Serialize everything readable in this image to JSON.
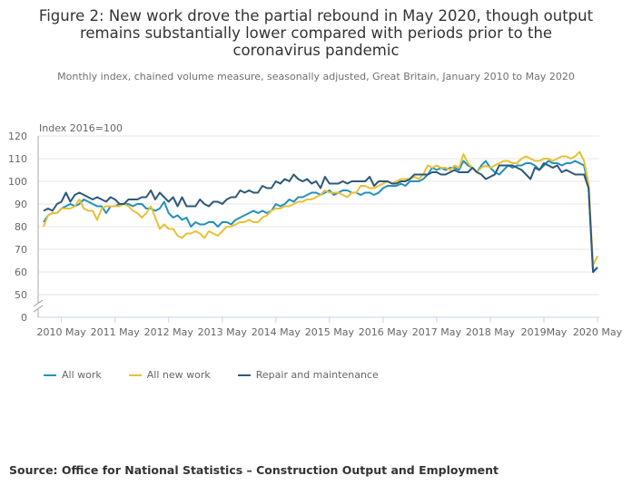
{
  "chart_data": {
    "type": "line",
    "title": "Figure 2: New work drove the partial rebound in May 2020, though output remains substantially lower compared with periods prior to the coronavirus pandemic",
    "subtitle": "Monthly index, chained volume measure, seasonally adjusted, Great Britain, January 2010 to May 2020",
    "ylabel": "Index 2016=100",
    "xlabel": "",
    "ylim": [
      0,
      120
    ],
    "yticks": [
      "120",
      "110",
      "100",
      "90",
      "80",
      "70",
      "60",
      "50",
      "0"
    ],
    "xticks": [
      "2010 May",
      "2011 May",
      "2012 May",
      "2013 May",
      "2014 May",
      "2015 May",
      "2016 May",
      "2017 May",
      "2018 May",
      "2019May",
      "2020 May"
    ],
    "x_start": "January 2010",
    "x_end": "May 2020",
    "frequency": "monthly",
    "series": [
      {
        "name": "All work",
        "color": "#2391bd",
        "values": [
          82,
          85,
          86,
          86,
          88,
          89,
          90,
          89,
          90,
          92,
          91,
          90,
          89,
          89,
          86,
          89,
          89,
          90,
          90,
          90,
          89,
          90,
          90,
          88,
          88,
          87,
          88,
          91,
          86,
          84,
          85,
          83,
          84,
          80,
          82,
          81,
          81,
          82,
          82,
          80,
          82,
          82,
          81,
          83,
          84,
          85,
          86,
          87,
          86,
          87,
          86,
          87,
          90,
          89,
          90,
          92,
          91,
          93,
          93,
          94,
          95,
          95,
          94,
          95,
          96,
          94,
          95,
          96,
          96,
          95,
          95,
          94,
          95,
          95,
          94,
          95,
          97,
          98,
          98,
          98,
          99,
          98,
          100,
          100,
          100,
          101,
          103,
          106,
          105,
          106,
          105,
          106,
          106,
          105,
          109,
          107,
          106,
          104,
          107,
          109,
          106,
          104,
          103,
          105,
          107,
          106,
          107,
          107,
          108,
          108,
          107,
          105,
          107,
          109,
          108,
          108,
          107,
          108,
          108,
          109,
          108,
          107,
          97,
          60,
          62
        ]
      },
      {
        "name": "All new work",
        "color": "#e8c135",
        "values": [
          80,
          85,
          86,
          86,
          88,
          88,
          88,
          89,
          92,
          88,
          87,
          87,
          83,
          88,
          89,
          89,
          89,
          89,
          90,
          89,
          87,
          86,
          84,
          86,
          89,
          84,
          79,
          81,
          79,
          79,
          76,
          75,
          77,
          77,
          78,
          77,
          75,
          78,
          77,
          76,
          78,
          80,
          80,
          81,
          82,
          82,
          83,
          82,
          82,
          84,
          85,
          87,
          88,
          88,
          89,
          89,
          90,
          91,
          91,
          92,
          92,
          93,
          94,
          96,
          95,
          95,
          95,
          94,
          93,
          95,
          95,
          98,
          98,
          97,
          97,
          98,
          99,
          100,
          99,
          100,
          101,
          101,
          101,
          102,
          101,
          103,
          107,
          106,
          107,
          106,
          106,
          105,
          107,
          106,
          112,
          108,
          106,
          104,
          106,
          107,
          106,
          107,
          108,
          109,
          109,
          108,
          108,
          110,
          111,
          110,
          109,
          109,
          110,
          110,
          109,
          110,
          111,
          111,
          110,
          111,
          113,
          109,
          99,
          63,
          67
        ]
      },
      {
        "name": "Repair and maintenance",
        "color": "#2f5878",
        "values": [
          87,
          88,
          87,
          90,
          91,
          95,
          91,
          94,
          95,
          94,
          93,
          92,
          93,
          92,
          91,
          93,
          92,
          90,
          90,
          92,
          92,
          92,
          93,
          93,
          96,
          92,
          95,
          93,
          91,
          93,
          89,
          93,
          89,
          89,
          89,
          92,
          90,
          89,
          91,
          91,
          90,
          92,
          93,
          93,
          96,
          95,
          96,
          95,
          95,
          98,
          97,
          97,
          100,
          99,
          101,
          100,
          103,
          101,
          100,
          101,
          99,
          100,
          97,
          102,
          99,
          99,
          99,
          100,
          99,
          100,
          100,
          100,
          100,
          102,
          98,
          100,
          100,
          100,
          99,
          99,
          100,
          100,
          101,
          103,
          103,
          103,
          103,
          104,
          104,
          103,
          103,
          104,
          105,
          104,
          104,
          104,
          106,
          104,
          103,
          101,
          102,
          103,
          107,
          107,
          107,
          107,
          106,
          105,
          103,
          101,
          106,
          105,
          108,
          107,
          106,
          107,
          104,
          105,
          104,
          103,
          103,
          103,
          97,
          60,
          62
        ]
      }
    ],
    "legend": "bottom-left",
    "grid": true
  },
  "source": "Source: Office for National Statistics – Construction Output and Employment"
}
